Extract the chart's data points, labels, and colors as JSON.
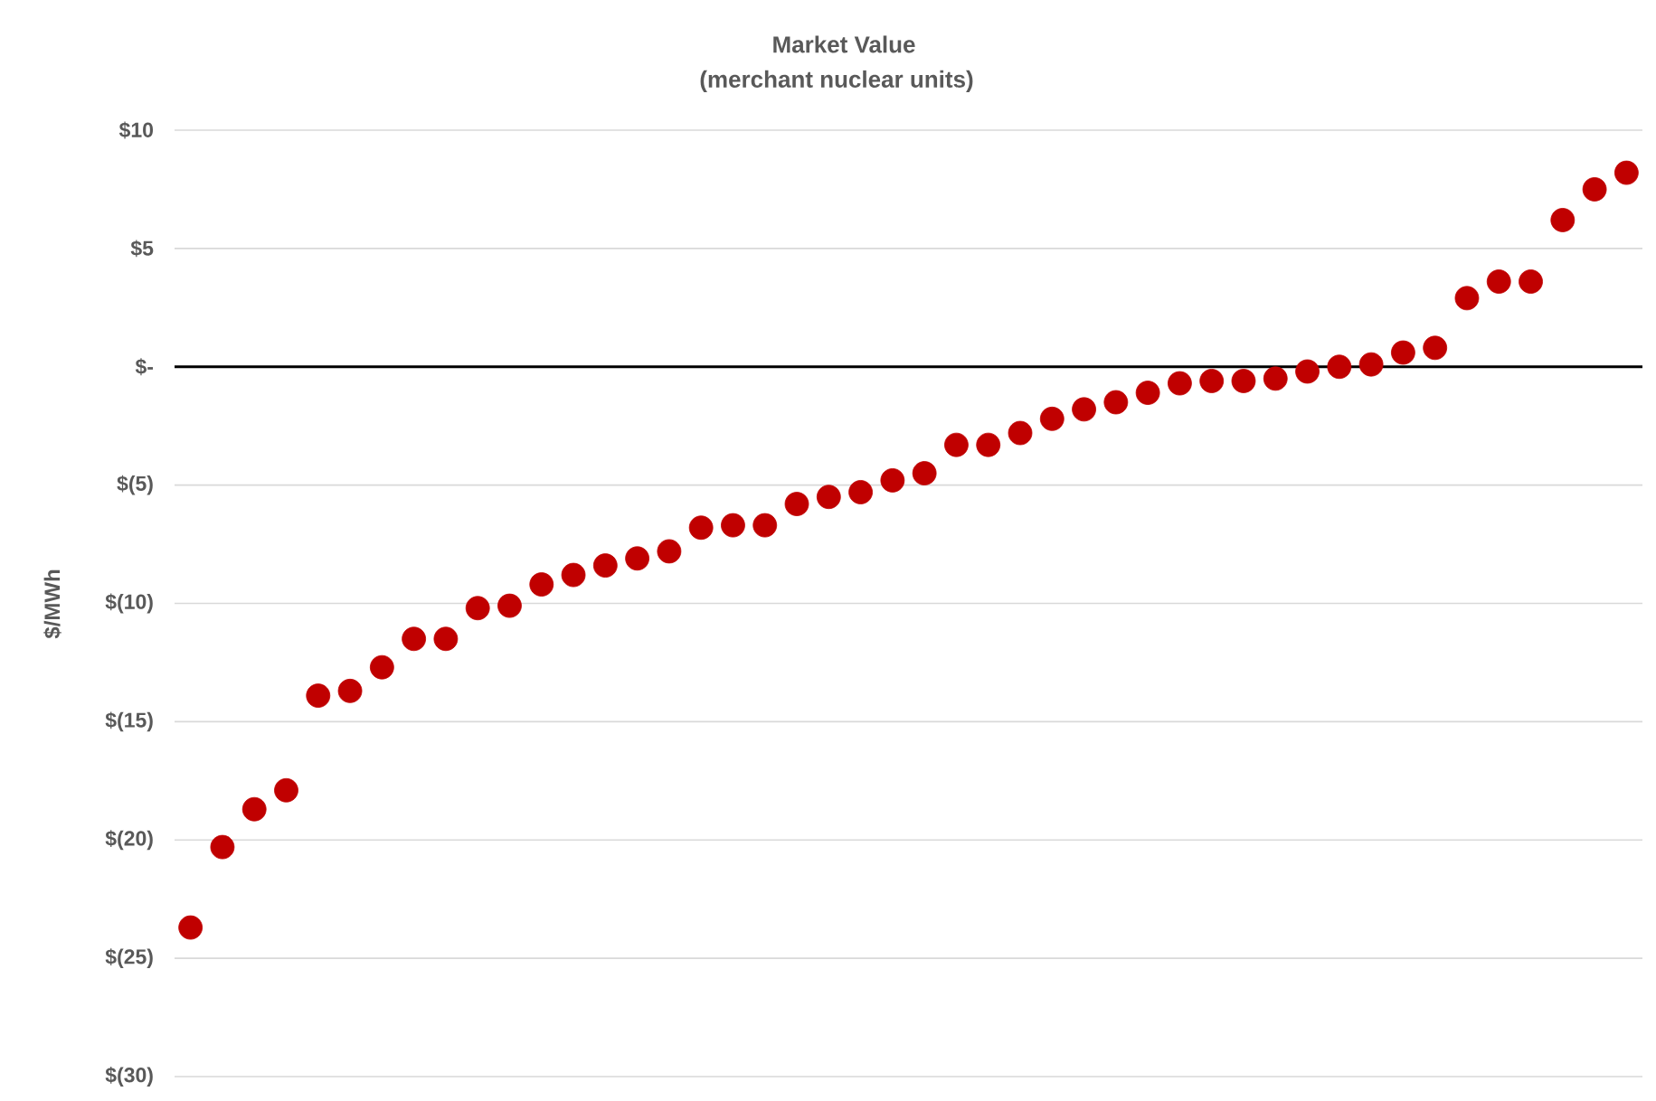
{
  "chart_data": {
    "type": "scatter",
    "title": "Market Value",
    "subtitle": "(merchant nuclear units)",
    "ylabel": "$/MWh",
    "categories": [
      null,
      null,
      null,
      null,
      null,
      null,
      null,
      null,
      null,
      null,
      null,
      null,
      null,
      null,
      null,
      null,
      null,
      null,
      null,
      null,
      null,
      null,
      null,
      null,
      null,
      null,
      null,
      null,
      null,
      null,
      null,
      null,
      null,
      null,
      null,
      null,
      null,
      null,
      null,
      null,
      null,
      null,
      null,
      null,
      null,
      null
    ],
    "series": [
      {
        "color": "#c00000",
        "values": [
          -23.7,
          -20.3,
          -18.7,
          -17.9,
          -13.9,
          -13.7,
          -12.7,
          -11.5,
          -11.5,
          -10.2,
          -10.1,
          -9.2,
          -8.8,
          -8.4,
          -8.1,
          -7.8,
          -6.8,
          -6.7,
          -6.7,
          -5.8,
          -5.5,
          -5.3,
          -4.8,
          -4.5,
          -3.3,
          -3.3,
          -2.8,
          -2.2,
          -1.8,
          -1.5,
          -1.1,
          -0.7,
          -0.6,
          -0.6,
          -0.5,
          -0.2,
          0,
          0.1,
          0.6,
          0.8,
          2.9,
          3.6,
          3.6,
          6.2,
          7.5,
          8.2
        ]
      }
    ],
    "ylim": [
      -30,
      10
    ],
    "yticks": [
      {
        "value": 10,
        "label": "$10"
      },
      {
        "value": 5,
        "label": "$5"
      },
      {
        "value": 0,
        "label": "$-"
      },
      {
        "value": -5,
        "label": "$(5)"
      },
      {
        "value": -10,
        "label": "$(10)"
      },
      {
        "value": -15,
        "label": "$(15)"
      },
      {
        "value": -20,
        "label": "$(20)"
      },
      {
        "value": -25,
        "label": "$(25)"
      },
      {
        "value": -30,
        "label": "$(30)"
      }
    ],
    "ref_lines": [
      {
        "axis": "y",
        "value": 0,
        "color": "#000000"
      }
    ],
    "grid": "y"
  }
}
